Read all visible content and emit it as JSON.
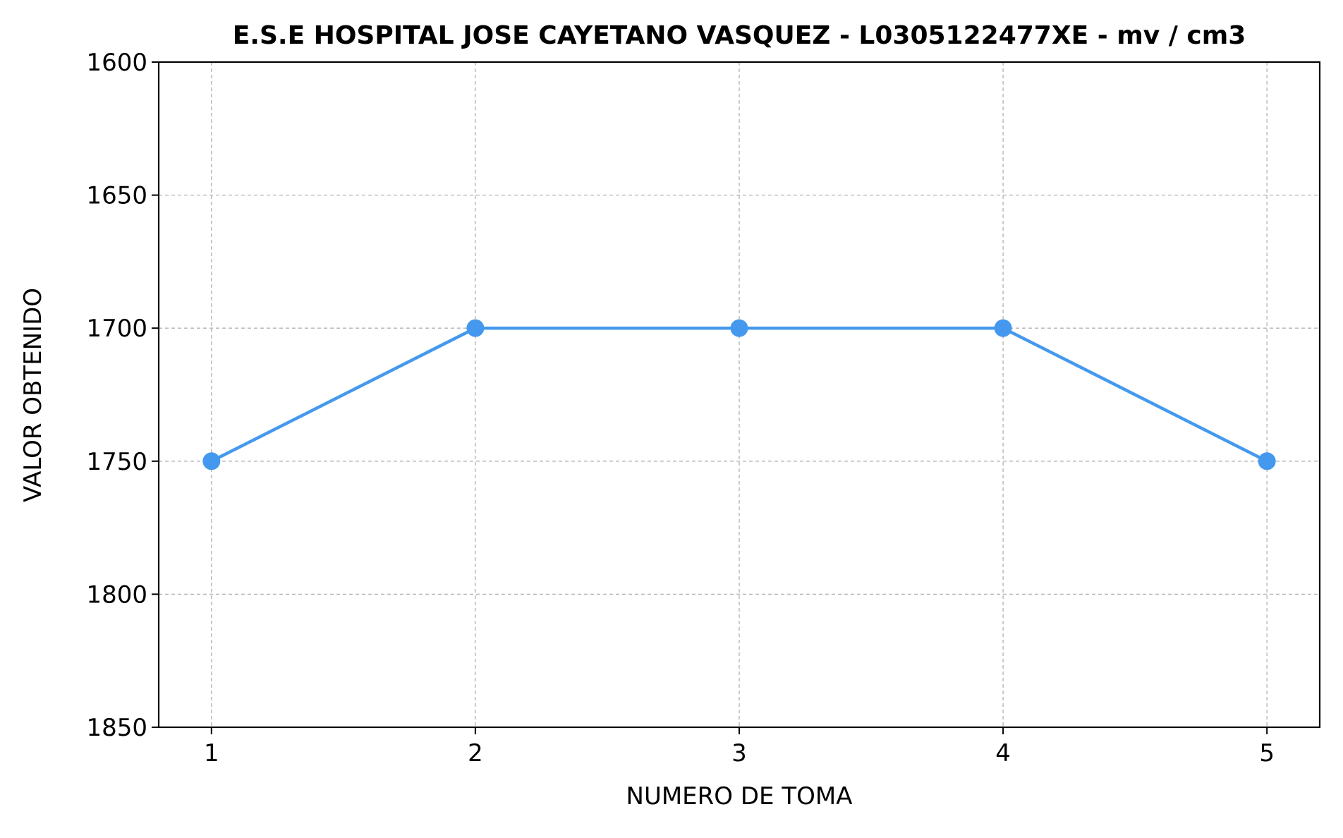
{
  "chart_data": {
    "type": "line",
    "title": "E.S.E HOSPITAL JOSE CAYETANO VASQUEZ - L0305122477XE - mv / cm3",
    "xlabel": "NUMERO DE TOMA",
    "ylabel": "VALOR OBTENIDO",
    "x": [
      1,
      2,
      3,
      4,
      5
    ],
    "x_ticks": [
      1,
      2,
      3,
      4,
      5
    ],
    "xlim": [
      0.8,
      5.2
    ],
    "ylim": [
      1600,
      1850
    ],
    "y_inverted": true,
    "y_ticks": [
      1600,
      1650,
      1700,
      1750,
      1800,
      1850
    ],
    "grid": true,
    "series": [
      {
        "name": "mv / cm3",
        "values": [
          1750,
          1700,
          1700,
          1700,
          1750
        ],
        "color": "#4499ee",
        "marker": "circle"
      }
    ]
  }
}
